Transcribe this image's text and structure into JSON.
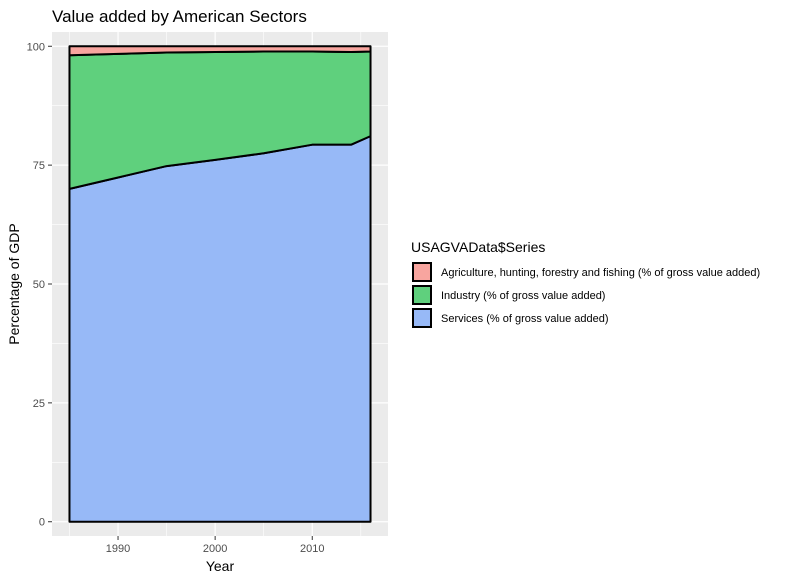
{
  "chart_data": {
    "type": "area",
    "stacked": true,
    "title": "Value added by American Sectors",
    "xlabel": "Year",
    "ylabel": "Percentage of GDP",
    "x": [
      1985,
      1990,
      1995,
      2000,
      2005,
      2010,
      2014,
      2016
    ],
    "xlim": [
      1983.2,
      2017.8
    ],
    "ylim": [
      -3,
      103
    ],
    "xticks": [
      "1990",
      "2000",
      "2010"
    ],
    "yticks": [
      "0",
      "25",
      "50",
      "75",
      "100"
    ],
    "grid": true,
    "legend_position": "right",
    "legend_title": "USAGVAData$Series",
    "series": [
      {
        "name": "Agriculture, hunting, forestry and fishing (% of gross value added)",
        "color": "#f8a59f",
        "values": [
          1.9,
          1.6,
          1.3,
          1.2,
          1.1,
          1.1,
          1.2,
          1.1
        ]
      },
      {
        "name": "Industry (% of gross value added)",
        "color": "#5fd07d",
        "values": [
          28.1,
          26.0,
          23.9,
          22.7,
          21.4,
          19.6,
          19.5,
          17.8
        ]
      },
      {
        "name": "Services (% of gross value added)",
        "color": "#97b9f7",
        "values": [
          70.0,
          72.4,
          74.8,
          76.1,
          77.5,
          79.3,
          79.3,
          81.1
        ]
      }
    ]
  }
}
